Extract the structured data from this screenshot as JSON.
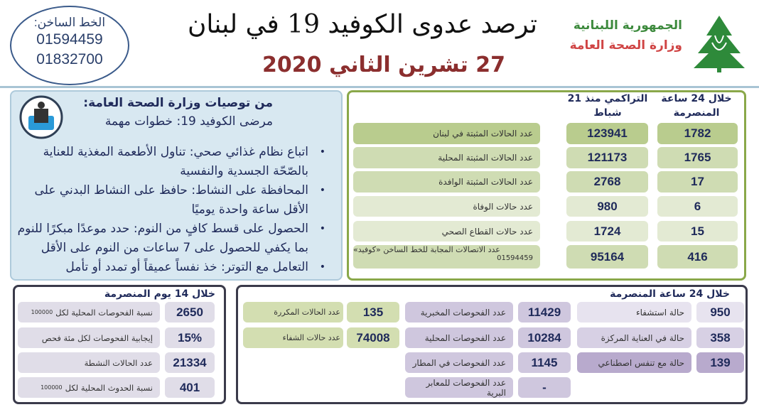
{
  "header": {
    "hotline_label": "الخط الساخن:",
    "hotline_numbers": [
      "01594459",
      "01832700"
    ],
    "title": "ترصد عدوى الكوفيد 19 في لبنان",
    "date": "27 تشرين الثاني 2020",
    "republic": "الجمهورية اللبنانية",
    "ministry": "وزارة الصحة العامة",
    "logo_icon": "cedar-icon"
  },
  "recommendations": {
    "title": "من توصيات وزارة الصحة العامة:",
    "subtitle": "مرضى الكوفيد 19: خطوات مهمة",
    "icon": "person-in-water-icon",
    "items": [
      "اتباع نظام غذائي صحي: تناول الأطعمة المغذية للعناية بالصّحّة الجسدية والنفسية",
      "المحافظة على النشاط: حافظ على النشاط البدني على الأقل ساعة واحدة يوميًا",
      "الحصول على قسط كافٍ من النوم: حدد موعدًا مبكرًا للنوم بما يكفي للحصول على 7 ساعات من النوم على الأقل",
      "التعامل مع التوتر: خذ نفساً عميقاً أو تمدد أو تأمل"
    ]
  },
  "cases": {
    "col_daily": "خلال 24 ساعة المنصرمة",
    "col_cum": "التراكمي منذ 21 شباط",
    "rows": [
      {
        "label": "عدد الحالات المثبتة في لبنان",
        "cum": "123941",
        "daily": "1782"
      },
      {
        "label": "عدد الحالات المثبتة المحلية",
        "cum": "121173",
        "daily": "1765"
      },
      {
        "label": "عدد الحالات المثبتة الوافدة",
        "cum": "2768",
        "daily": "17"
      },
      {
        "label": "عدد حالات الوفاة",
        "cum": "980",
        "daily": "6"
      },
      {
        "label": "عدد حالات القطاع الصحي",
        "cum": "1724",
        "daily": "15"
      },
      {
        "label": "عدد الاتصالات المجابة للخط الساخن «كوفيد»",
        "sub": "01594459",
        "cum": "95164",
        "daily": "416"
      }
    ]
  },
  "days14": {
    "title": "خلال 14 يوم المنصرمة",
    "rows": [
      {
        "label": "نسبة الفحوصات المحلية لكل",
        "small": "100000",
        "value": "2650"
      },
      {
        "label": "إيجابية الفحوصات لكل مئة فحص",
        "value": "15%"
      },
      {
        "label": "عدد الحالات النشطة",
        "value": "21334"
      },
      {
        "label": "نسبة الحدوث المحلية لكل",
        "small": "100000",
        "value": "401"
      }
    ]
  },
  "hours24": {
    "title": "خلال 24 ساعة المنصرمة",
    "hospital": [
      {
        "label": "حالة استشفاء",
        "value": "950"
      },
      {
        "label": "حالة في العناية المركزة",
        "value": "358"
      },
      {
        "label": "حالة مع تنفس اصطناعي",
        "value": "139"
      }
    ],
    "tests": [
      {
        "label": "عدد الفحوصات المخبرية",
        "value": "11429"
      },
      {
        "label": "عدد الفحوصات المحلية",
        "value": "10284"
      },
      {
        "label": "عدد الفحوصات في المطار",
        "value": "1145"
      },
      {
        "label": "عدد الفحوصات للمعابر البرية",
        "value": "-"
      }
    ],
    "other": [
      {
        "label": "عدد الحالات المكررة",
        "value": "135"
      },
      {
        "label": "عدد حالات الشفاء",
        "value": "74008"
      }
    ]
  },
  "colors": {
    "green_border": "#8aa84a",
    "maroon": "#8b2e2e",
    "navy": "#1f2a5a",
    "purple": "#cfc7de"
  }
}
